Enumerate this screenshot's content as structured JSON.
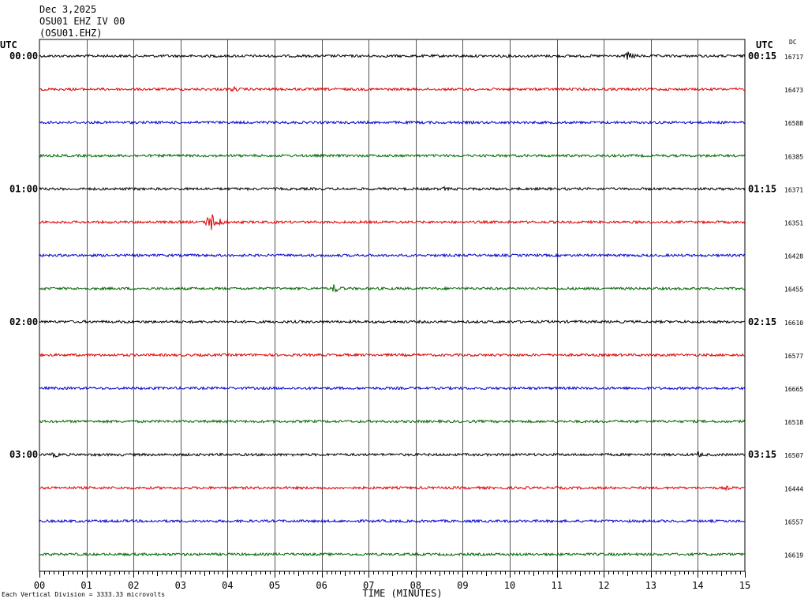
{
  "header": {
    "date": "Dec 3,2025",
    "station": "OSU01 EHZ IV 00",
    "channel": "(OSU01.EHZ)"
  },
  "utc_left_label": "UTC",
  "utc_right_label": "UTC",
  "dc_label": "DC",
  "footnote": "Each Vertical Division = 3333.33 microvolts",
  "colors": {
    "black": "#000000",
    "red": "#dd0000",
    "blue": "#0000cc",
    "green": "#006600",
    "grid": "#000000"
  },
  "chart_data": {
    "type": "line",
    "title": "",
    "xlabel": "TIME (MINUTES)",
    "ylabel": "",
    "xlim": [
      0,
      15
    ],
    "x_ticks": [
      "00",
      "01",
      "02",
      "03",
      "04",
      "05",
      "06",
      "07",
      "08",
      "09",
      "10",
      "11",
      "12",
      "13",
      "14",
      "15"
    ],
    "trace_colors": [
      "#000000",
      "#dd0000",
      "#0000cc",
      "#006600"
    ],
    "left_time_labels": [
      "00:00",
      "01:00",
      "02:00",
      "03:00"
    ],
    "right_time_labels": [
      "00:15",
      "01:15",
      "02:15",
      "03:15"
    ],
    "dc_values": [
      "16717",
      "16473",
      "16588",
      "16385",
      "16371",
      "16351",
      "16428",
      "16455",
      "16610",
      "16577",
      "16665",
      "16518",
      "16507",
      "16444",
      "16557",
      "16619"
    ],
    "events": [
      {
        "trace": 0,
        "minute": 12.5,
        "amplitude": 6
      },
      {
        "trace": 1,
        "minute": 4.1,
        "amplitude": 4
      },
      {
        "trace": 4,
        "minute": 8.6,
        "amplitude": 3
      },
      {
        "trace": 5,
        "minute": 3.6,
        "amplitude": 16
      },
      {
        "trace": 7,
        "minute": 6.25,
        "amplitude": 6
      },
      {
        "trace": 12,
        "minute": 0.3,
        "amplitude": 4
      },
      {
        "trace": 12,
        "minute": 14.0,
        "amplitude": 4
      },
      {
        "trace": 13,
        "minute": 14.6,
        "amplitude": 3
      }
    ]
  }
}
